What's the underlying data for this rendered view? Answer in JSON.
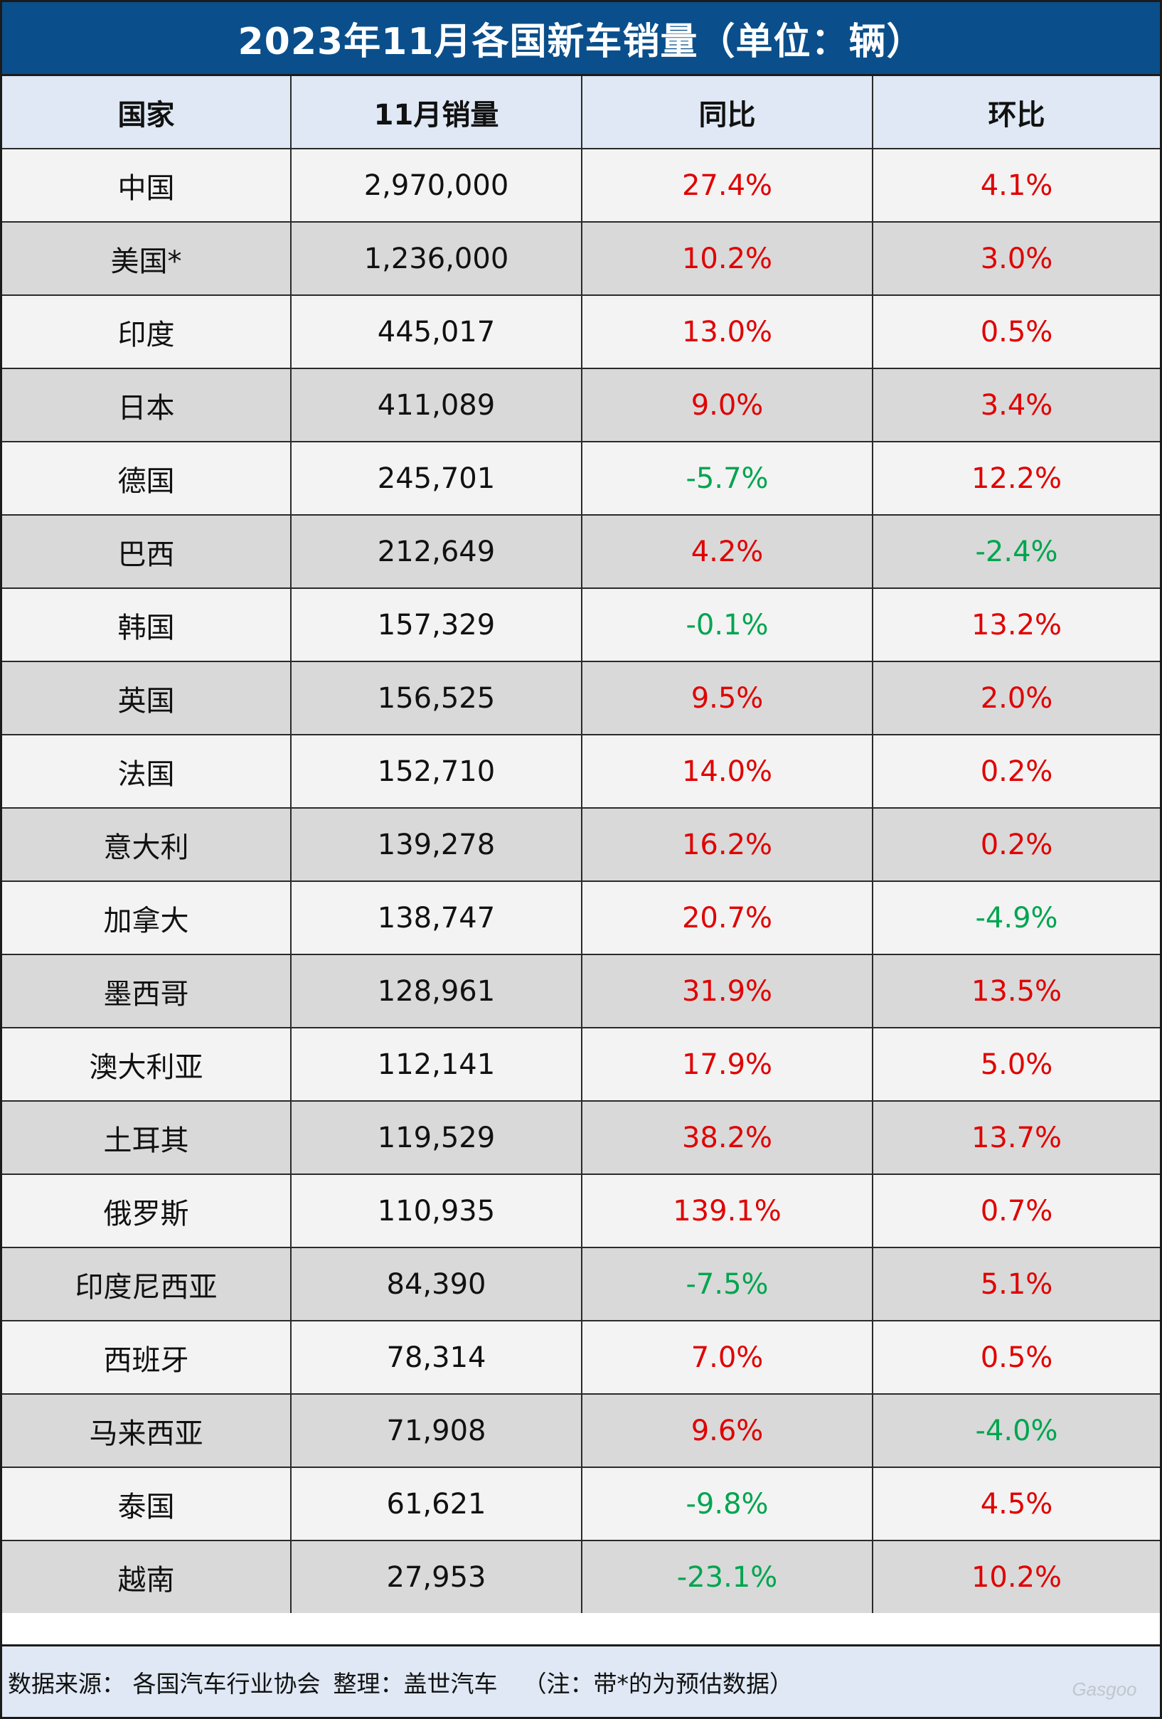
{
  "title": "2023年11月各国新车销量（单位：辆）",
  "colors": {
    "title_bg": "#0a4f8b",
    "header_bg": "#dfe8f4",
    "row_light": "#f3f3f3",
    "row_dark": "#d9d9d9",
    "positive": "#e00000",
    "negative": "#00a550"
  },
  "chart_data": {
    "type": "table",
    "title": "2023年11月各国新车销量（单位：辆）",
    "columns": [
      "国家",
      "11月销量",
      "同比",
      "环比"
    ],
    "rows": [
      [
        "中国",
        "2,970,000",
        "27.4%",
        "4.1%"
      ],
      [
        "美国*",
        "1,236,000",
        "10.2%",
        "3.0%"
      ],
      [
        "印度",
        "445,017",
        "13.0%",
        "0.5%"
      ],
      [
        "日本",
        "411,089",
        "9.0%",
        "3.4%"
      ],
      [
        "德国",
        "245,701",
        "-5.7%",
        "12.2%"
      ],
      [
        "巴西",
        "212,649",
        "4.2%",
        "-2.4%"
      ],
      [
        "韩国",
        "157,329",
        "-0.1%",
        "13.2%"
      ],
      [
        "英国",
        "156,525",
        "9.5%",
        "2.0%"
      ],
      [
        "法国",
        "152,710",
        "14.0%",
        "0.2%"
      ],
      [
        "意大利",
        "139,278",
        "16.2%",
        "0.2%"
      ],
      [
        "加拿大",
        "138,747",
        "20.7%",
        "-4.9%"
      ],
      [
        "墨西哥",
        "128,961",
        "31.9%",
        "13.5%"
      ],
      [
        "澳大利亚",
        "112,141",
        "17.9%",
        "5.0%"
      ],
      [
        "土耳其",
        "119,529",
        "38.2%",
        "13.7%"
      ],
      [
        "俄罗斯",
        "110,935",
        "139.1%",
        "0.7%"
      ],
      [
        "印度尼西亚",
        "84,390",
        "-7.5%",
        "5.1%"
      ],
      [
        "西班牙",
        "78,314",
        "7.0%",
        "0.5%"
      ],
      [
        "马来西亚",
        "71,908",
        "9.6%",
        "-4.0%"
      ],
      [
        "泰国",
        "61,621",
        "-9.8%",
        "4.5%"
      ],
      [
        "越南",
        "27,953",
        "-23.1%",
        "10.2%"
      ]
    ]
  },
  "footer": {
    "source": "数据来源： 各国汽车行业协会",
    "compiled": "整理：盖世汽车",
    "note": "（注：带*的为预估数据）"
  },
  "watermark": {
    "brand": "Gasgoo"
  }
}
